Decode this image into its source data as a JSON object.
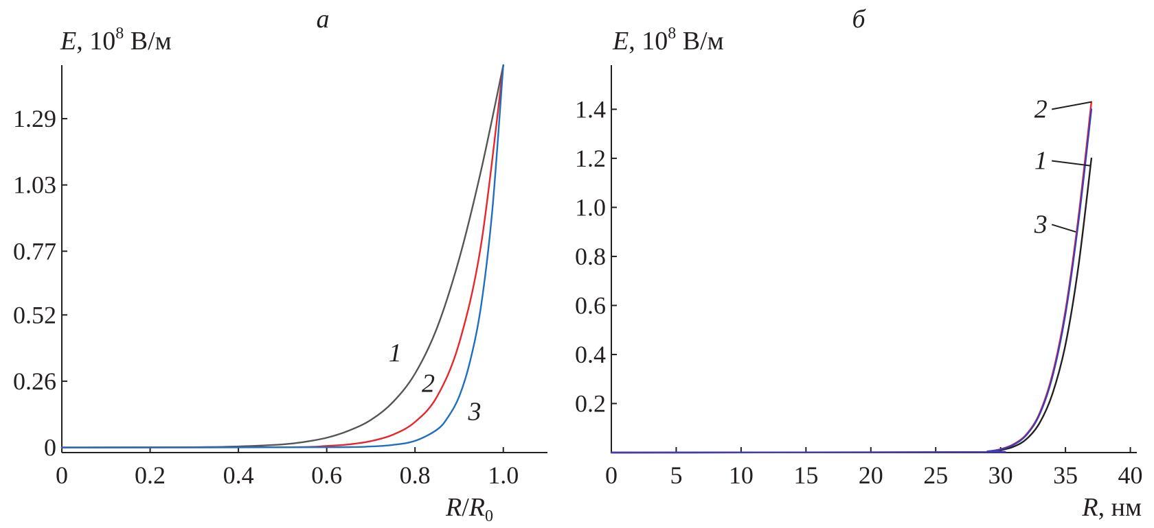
{
  "chart_data": [
    {
      "type": "line",
      "panel": "a",
      "title": "а",
      "ylabel": "E, 10^8 В/м",
      "ylabel_parts": {
        "var": "E",
        "sep": ", 10",
        "exp": "8",
        "unit": " В/м"
      },
      "xlabel": "R/R0",
      "xlabel_parts": {
        "a": "R",
        "slash": "/",
        "b": "R",
        "sub": "0"
      },
      "xlim": [
        0,
        1.1
      ],
      "ylim": [
        -0.02,
        1.5
      ],
      "xticks": [
        0,
        0.2,
        0.4,
        0.6,
        0.8,
        1.0
      ],
      "xtick_labels": [
        "0",
        "0.2",
        "0.4",
        "0.6",
        "0.8",
        "1.0"
      ],
      "yticks": [
        0,
        0.26,
        0.52,
        0.77,
        1.03,
        1.29
      ],
      "ytick_labels": [
        "0",
        "0.26",
        "0.52",
        "0.77",
        "1.03",
        "1.29"
      ],
      "series": [
        {
          "label": "1",
          "color": "#555555",
          "x": [
            0,
            0.3,
            0.4,
            0.5,
            0.55,
            0.6,
            0.65,
            0.7,
            0.75,
            0.8,
            0.85,
            0.9,
            0.95,
            1.0
          ],
          "y": [
            0,
            0.001,
            0.004,
            0.012,
            0.022,
            0.038,
            0.066,
            0.108,
            0.178,
            0.29,
            0.47,
            0.74,
            1.09,
            1.5
          ]
        },
        {
          "label": "2",
          "color": "#e8262a",
          "x": [
            0,
            0.5,
            0.6,
            0.65,
            0.7,
            0.75,
            0.8,
            0.85,
            0.9,
            0.95,
            1.0
          ],
          "y": [
            0,
            0.001,
            0.006,
            0.012,
            0.025,
            0.05,
            0.1,
            0.2,
            0.41,
            0.8,
            1.5
          ]
        },
        {
          "label": "3",
          "color": "#1f6ebf",
          "x": [
            0,
            0.6,
            0.7,
            0.75,
            0.8,
            0.85,
            0.875,
            0.9,
            0.925,
            0.95,
            0.975,
            1.0
          ],
          "y": [
            0,
            0.001,
            0.004,
            0.01,
            0.026,
            0.07,
            0.12,
            0.2,
            0.34,
            0.56,
            0.93,
            1.5
          ]
        }
      ],
      "curve_labels": [
        {
          "text": "1",
          "x": 0.755,
          "y": 0.37
        },
        {
          "text": "2",
          "x": 0.83,
          "y": 0.25
        },
        {
          "text": "3",
          "x": 0.935,
          "y": 0.14
        }
      ]
    },
    {
      "type": "line",
      "panel": "b",
      "title": "б",
      "ylabel": "E, 10^8 В/м",
      "ylabel_parts": {
        "var": "E",
        "sep": ", 10",
        "exp": "8",
        "unit": " В/м"
      },
      "xlabel": "R, нм",
      "xlabel_parts": {
        "a": "R",
        "unit": ", нм"
      },
      "xlim": [
        0,
        40.5
      ],
      "ylim": [
        0,
        1.58
      ],
      "xticks": [
        0,
        5,
        10,
        15,
        20,
        25,
        30,
        35,
        40
      ],
      "xtick_labels": [
        "0",
        "5",
        "10",
        "15",
        "20",
        "25",
        "30",
        "35",
        "40"
      ],
      "yticks": [
        0.2,
        0.4,
        0.6,
        0.8,
        1.0,
        1.2,
        1.4
      ],
      "ytick_labels": [
        "0.2",
        "0.4",
        "0.6",
        "0.8",
        "1.0",
        "1.2",
        "1.4"
      ],
      "series": [
        {
          "label": "1",
          "color": "#231f20",
          "x": [
            0,
            28,
            29,
            30,
            31,
            32,
            33,
            34,
            35,
            36,
            37
          ],
          "y": [
            0,
            0.001,
            0.003,
            0.01,
            0.024,
            0.055,
            0.12,
            0.24,
            0.44,
            0.76,
            1.2
          ]
        },
        {
          "label": "2",
          "color": "#e8262a",
          "x": [
            0,
            28,
            29,
            30,
            31,
            32,
            33,
            34,
            35,
            36,
            37
          ],
          "y": [
            0,
            0.002,
            0.005,
            0.014,
            0.034,
            0.075,
            0.16,
            0.32,
            0.58,
            0.96,
            1.43
          ]
        },
        {
          "label": "3",
          "color": "#3a3fb5",
          "x": [
            0,
            28,
            29,
            30,
            31,
            32,
            33,
            34,
            35,
            36,
            37
          ],
          "y": [
            0,
            0.002,
            0.005,
            0.013,
            0.032,
            0.072,
            0.155,
            0.31,
            0.565,
            0.94,
            1.4
          ]
        }
      ],
      "curve_labels": [
        {
          "text": "2",
          "x": 33.1,
          "y": 1.4,
          "leader_to": [
            37.0,
            1.43
          ]
        },
        {
          "text": "1",
          "x": 33.1,
          "y": 1.19,
          "leader_to": [
            36.9,
            1.17
          ]
        },
        {
          "text": "3",
          "x": 33.1,
          "y": 0.93,
          "leader_to": [
            35.8,
            0.9
          ]
        }
      ]
    }
  ]
}
